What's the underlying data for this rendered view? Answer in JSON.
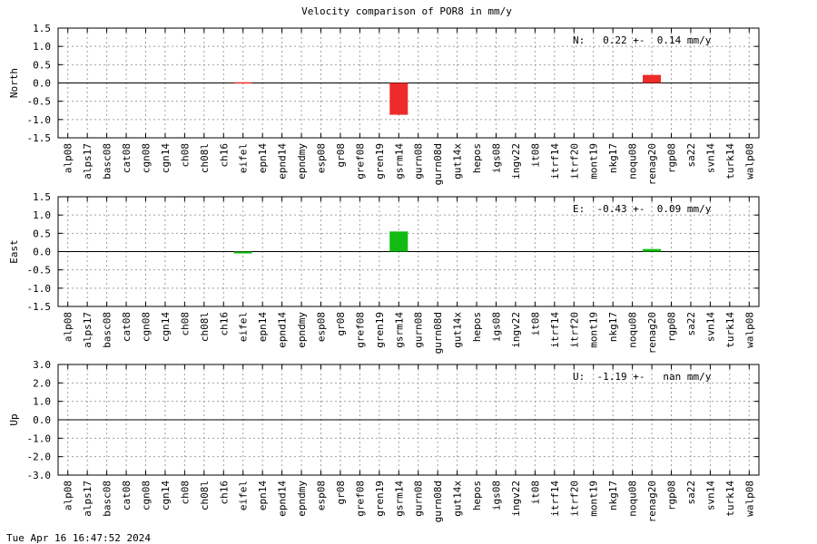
{
  "timestamp": "Tue Apr 16 16:47:52 2024",
  "chart_data": {
    "type": "bar",
    "title": "Velocity comparison of POR8 in mm/y",
    "categories": [
      "alp08",
      "alps17",
      "basc08",
      "cat08",
      "cgn08",
      "cgn14",
      "ch08",
      "ch08l",
      "ch16",
      "eifel",
      "epn14",
      "epnd14",
      "epndmy",
      "esp08",
      "gr08",
      "gref08",
      "gren19",
      "gsrm14",
      "gurn08",
      "gurn08d",
      "gut14x",
      "hepos",
      "igs08",
      "ingv22",
      "it08",
      "itrf14",
      "itrf20",
      "mont19",
      "nkg17",
      "noqu08",
      "renag20",
      "rgp08",
      "sa22",
      "svn14",
      "turk14",
      "walp08"
    ],
    "panels": [
      {
        "ylabel": "North",
        "ylim": [
          -1.5,
          1.5
        ],
        "yticks": [
          "1.5",
          "1.0",
          "0.5",
          "0.0",
          "-0.5",
          "-1.0",
          "-1.5"
        ],
        "tick_values": [
          1.5,
          1.0,
          0.5,
          0.0,
          -0.5,
          -1.0,
          -1.5
        ],
        "bar_color": "#ee2b2b",
        "annotation": "N:   0.22 +-  0.14 mm/y",
        "values": [
          null,
          null,
          null,
          null,
          null,
          null,
          null,
          null,
          null,
          0.02,
          null,
          null,
          null,
          null,
          null,
          null,
          null,
          -0.87,
          null,
          null,
          null,
          null,
          null,
          null,
          null,
          null,
          null,
          null,
          null,
          null,
          0.22,
          null,
          null,
          null,
          null,
          null
        ]
      },
      {
        "ylabel": "East",
        "ylim": [
          -1.5,
          1.5
        ],
        "yticks": [
          "1.5",
          "1.0",
          "0.5",
          "0.0",
          "-0.5",
          "-1.0",
          "-1.5"
        ],
        "tick_values": [
          1.5,
          1.0,
          0.5,
          0.0,
          -0.5,
          -1.0,
          -1.5
        ],
        "bar_color": "#11bb11",
        "annotation": "E:  -0.43 +-  0.09 mm/y",
        "values": [
          null,
          null,
          null,
          null,
          null,
          null,
          null,
          null,
          null,
          -0.05,
          null,
          null,
          null,
          null,
          null,
          null,
          null,
          0.55,
          null,
          null,
          null,
          null,
          null,
          null,
          null,
          null,
          null,
          null,
          null,
          null,
          0.07,
          null,
          null,
          null,
          null,
          null
        ]
      },
      {
        "ylabel": "Up",
        "ylim": [
          -3.0,
          3.0
        ],
        "yticks": [
          "3.0",
          "2.0",
          "1.0",
          "0.0",
          "-1.0",
          "-2.0",
          "-3.0"
        ],
        "tick_values": [
          3.0,
          2.0,
          1.0,
          0.0,
          -1.0,
          -2.0,
          -3.0
        ],
        "bar_color": "#3355ee",
        "annotation": "U:  -1.19 +-   nan mm/y",
        "values": [
          null,
          null,
          null,
          null,
          null,
          null,
          null,
          null,
          null,
          null,
          null,
          null,
          null,
          null,
          null,
          null,
          null,
          null,
          null,
          null,
          null,
          null,
          null,
          null,
          null,
          null,
          null,
          null,
          null,
          null,
          null,
          null,
          null,
          null,
          null,
          null
        ]
      }
    ],
    "grid": true
  }
}
